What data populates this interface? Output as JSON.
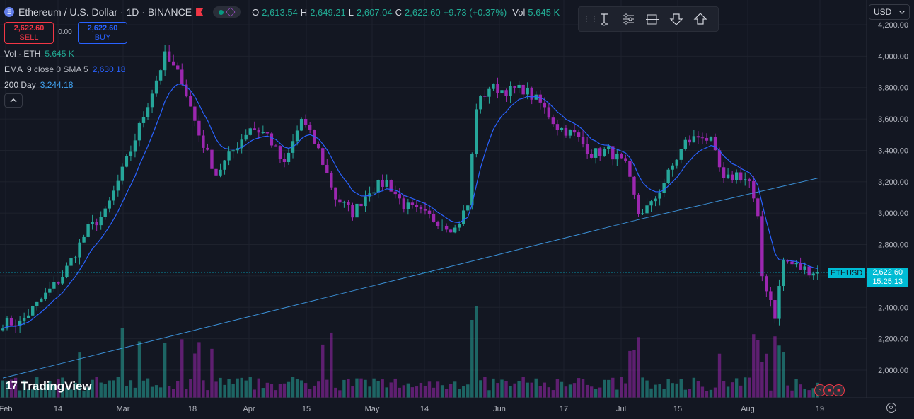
{
  "header": {
    "symbol_title": "Ethereum / U.S. Dollar · 1D · BINANCE",
    "ohlc": [
      {
        "label": "O",
        "value": "2,613.54"
      },
      {
        "label": "H",
        "value": "2,649.21"
      },
      {
        "label": "L",
        "value": "2,607.04"
      },
      {
        "label": "C",
        "value": "2,622.60"
      }
    ],
    "change": "+9.73 (+0.37%)",
    "volume_label": "Vol",
    "volume_value": "5.645 K"
  },
  "trade": {
    "sell_price": "2,622.60",
    "sell_label": "SELL",
    "spread": "0.00",
    "buy_price": "2,622.60",
    "buy_label": "BUY"
  },
  "indicators": [
    {
      "name": "Vol · ETH",
      "params": "",
      "value": "5.645 K"
    },
    {
      "name": "EMA",
      "params": "9 close 0 SMA 5",
      "value": "2,630.18"
    },
    {
      "name": "200 Day",
      "params": "",
      "value": "3,244.18"
    }
  ],
  "toolbar": {
    "currency": "USD"
  },
  "price_label": {
    "symbol": "ETHUSD",
    "price": "2,622.60",
    "countdown": "15:25:13"
  },
  "brand": "TradingView",
  "colors": {
    "up": "#26a69a",
    "down": "#9c27b0",
    "ema": "#2962ff",
    "sma200": "#42a5f5",
    "grid": "#1e222d",
    "background": "#131722"
  },
  "chart_data": {
    "type": "candlestick",
    "title": "Ethereum / U.S. Dollar · 1D · BINANCE",
    "ylim": [
      1800,
      4250
    ],
    "y_ticks": [
      "4,200.00",
      "4,000.00",
      "3,800.00",
      "3,600.00",
      "3,400.00",
      "3,200.00",
      "3,000.00",
      "2,800.00",
      "2,600.00",
      "2,400.00",
      "2,200.00",
      "2,000.00"
    ],
    "x_ticks": [
      "Feb",
      "14",
      "Mar",
      "18",
      "Apr",
      "15",
      "May",
      "14",
      "Jun",
      "17",
      "Jul",
      "15",
      "Aug",
      "19"
    ],
    "anchors": [
      {
        "day": 0,
        "close": 2300
      },
      {
        "day": 4,
        "close": 2300
      },
      {
        "day": 10,
        "close": 2480
      },
      {
        "day": 14,
        "close": 2600
      },
      {
        "day": 20,
        "close": 2900
      },
      {
        "day": 24,
        "close": 3000
      },
      {
        "day": 30,
        "close": 3400
      },
      {
        "day": 34,
        "close": 3700
      },
      {
        "day": 38,
        "close": 4000
      },
      {
        "day": 42,
        "close": 3850
      },
      {
        "day": 46,
        "close": 3500
      },
      {
        "day": 50,
        "close": 3250
      },
      {
        "day": 54,
        "close": 3400
      },
      {
        "day": 58,
        "close": 3550
      },
      {
        "day": 62,
        "close": 3500
      },
      {
        "day": 66,
        "close": 3300
      },
      {
        "day": 70,
        "close": 3600
      },
      {
        "day": 74,
        "close": 3400
      },
      {
        "day": 78,
        "close": 3100
      },
      {
        "day": 82,
        "close": 3000
      },
      {
        "day": 86,
        "close": 3150
      },
      {
        "day": 90,
        "close": 3200
      },
      {
        "day": 94,
        "close": 3050
      },
      {
        "day": 98,
        "close": 3000
      },
      {
        "day": 102,
        "close": 2950
      },
      {
        "day": 106,
        "close": 2900
      },
      {
        "day": 109,
        "close": 3050
      },
      {
        "day": 111,
        "close": 3680
      },
      {
        "day": 114,
        "close": 3800
      },
      {
        "day": 118,
        "close": 3780
      },
      {
        "day": 122,
        "close": 3790
      },
      {
        "day": 126,
        "close": 3700
      },
      {
        "day": 130,
        "close": 3550
      },
      {
        "day": 134,
        "close": 3500
      },
      {
        "day": 138,
        "close": 3380
      },
      {
        "day": 142,
        "close": 3400
      },
      {
        "day": 146,
        "close": 3300
      },
      {
        "day": 149,
        "close": 3000
      },
      {
        "day": 152,
        "close": 3050
      },
      {
        "day": 156,
        "close": 3250
      },
      {
        "day": 160,
        "close": 3450
      },
      {
        "day": 164,
        "close": 3500
      },
      {
        "day": 166,
        "close": 3450
      },
      {
        "day": 169,
        "close": 3200
      },
      {
        "day": 172,
        "close": 3250
      },
      {
        "day": 175,
        "close": 3200
      },
      {
        "day": 177,
        "close": 2950
      },
      {
        "day": 178,
        "close": 2600
      },
      {
        "day": 180,
        "close": 2450
      },
      {
        "day": 181,
        "close": 2350
      },
      {
        "day": 183,
        "close": 2700
      },
      {
        "day": 187,
        "close": 2650
      },
      {
        "day": 191,
        "close": 2622.6
      }
    ]
  }
}
